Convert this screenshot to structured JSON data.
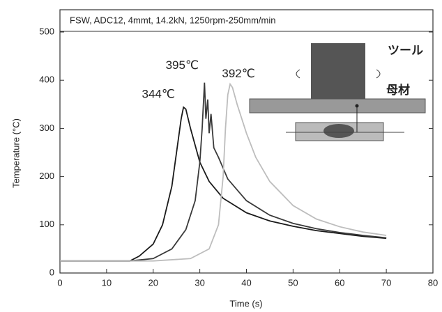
{
  "chart_data": {
    "type": "line",
    "subtitle": "FSW, ADC12, 4mmt, 14.2kN, 1250rpm-250mm/min",
    "x_label": "Time (s)",
    "y_label": "Temperature (°C)",
    "xlim": [
      0,
      80
    ],
    "xticks": [
      0,
      10,
      20,
      30,
      40,
      50,
      60,
      70,
      80
    ],
    "ylim": [
      0,
      500
    ],
    "yticks": [
      0,
      100,
      200,
      300,
      400,
      500
    ],
    "series": [
      {
        "color": "#1a1a1a",
        "x": [
          0,
          15,
          17,
          20,
          22,
          24,
          25,
          26,
          26.5,
          27,
          28,
          30,
          32,
          35,
          40,
          45,
          50,
          55,
          60,
          65,
          70
        ],
        "values": [
          25,
          25,
          35,
          60,
          100,
          180,
          250,
          320,
          344,
          340,
          300,
          230,
          190,
          155,
          125,
          108,
          97,
          88,
          82,
          76,
          72
        ]
      },
      {
        "color": "#3a3a3a",
        "x": [
          0,
          15,
          20,
          24,
          27,
          29,
          30,
          30.5,
          31,
          31.3,
          31.7,
          32,
          32.4,
          33,
          34,
          36,
          40,
          45,
          50,
          55,
          60,
          65,
          70
        ],
        "values": [
          25,
          25,
          30,
          50,
          90,
          150,
          230,
          300,
          395,
          320,
          360,
          290,
          330,
          260,
          240,
          195,
          150,
          120,
          103,
          92,
          84,
          78,
          73
        ]
      },
      {
        "color": "#bdbdbd",
        "x": [
          0,
          20,
          28,
          32,
          34,
          35,
          35.5,
          36,
          36.5,
          37,
          38,
          40,
          42,
          45,
          50,
          55,
          60,
          65,
          70
        ],
        "values": [
          25,
          25,
          30,
          50,
          100,
          200,
          300,
          370,
          392,
          385,
          350,
          290,
          240,
          190,
          140,
          112,
          96,
          85,
          78
        ]
      }
    ],
    "annotations": [
      "344℃",
      "395℃",
      "392℃"
    ],
    "inset_labels": [
      "ツール",
      "母材"
    ]
  }
}
